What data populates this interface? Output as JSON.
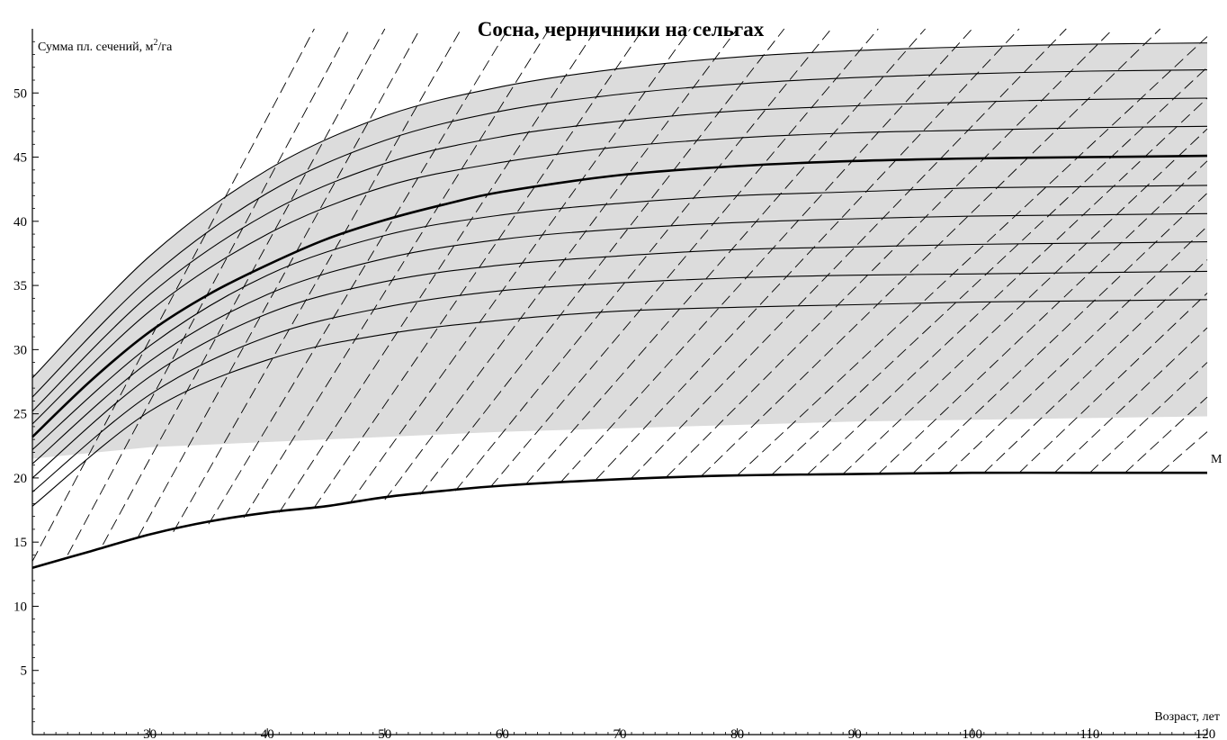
{
  "chart_data": {
    "type": "line",
    "title": "Сосна, черничники на сельгах",
    "ylabel": "Сумма пл. сечений, м²/га",
    "ylabel_main": "Сумма пл. сечений, м",
    "ylabel_sup": "2",
    "ylabel_tail": "/га",
    "xlabel": "Возраст, лет",
    "xlim": [
      20,
      120
    ],
    "ylim": [
      0,
      55
    ],
    "x_ticks": [
      30,
      40,
      50,
      60,
      70,
      80,
      90,
      100,
      110,
      120
    ],
    "y_ticks": [
      5,
      10,
      15,
      20,
      25,
      30,
      35,
      40,
      45,
      50
    ],
    "grid": false,
    "shaded_region_color": "#dcdcdc",
    "line_color": "#000000",
    "annotation_m": "М",
    "series": [
      {
        "style": "thin",
        "x": [
          20,
          30,
          40,
          50,
          60,
          70,
          80,
          90,
          100,
          110,
          120
        ],
        "y": [
          17.8,
          25.2,
          29.2,
          31.2,
          32.3,
          33.0,
          33.3,
          33.5,
          33.7,
          33.8,
          33.9
        ]
      },
      {
        "style": "thin",
        "x": [
          20,
          30,
          40,
          50,
          60,
          70,
          80,
          90,
          100,
          110,
          120
        ],
        "y": [
          18.9,
          26.5,
          31.0,
          33.3,
          34.6,
          35.2,
          35.6,
          35.8,
          35.9,
          36.0,
          36.1
        ]
      },
      {
        "style": "thin",
        "x": [
          20,
          30,
          40,
          50,
          60,
          70,
          80,
          90,
          100,
          110,
          120
        ],
        "y": [
          20.0,
          27.9,
          32.8,
          35.3,
          36.6,
          37.3,
          37.8,
          38.0,
          38.2,
          38.3,
          38.4
        ]
      },
      {
        "style": "thin",
        "x": [
          20,
          30,
          40,
          50,
          60,
          70,
          80,
          90,
          100,
          110,
          120
        ],
        "y": [
          21.1,
          29.1,
          34.3,
          37.1,
          38.6,
          39.4,
          39.9,
          40.2,
          40.4,
          40.5,
          40.6
        ]
      },
      {
        "style": "thin",
        "x": [
          20,
          30,
          40,
          50,
          60,
          70,
          80,
          90,
          100,
          110,
          120
        ],
        "y": [
          22.2,
          30.3,
          35.8,
          38.9,
          40.5,
          41.4,
          42.0,
          42.3,
          42.6,
          42.7,
          42.8
        ]
      },
      {
        "style": "thick",
        "x": [
          20,
          25,
          30,
          35,
          40,
          45,
          50,
          55,
          60,
          70,
          80,
          90,
          100,
          110,
          120
        ],
        "y": [
          23.2,
          27.6,
          31.4,
          34.3,
          36.6,
          38.6,
          40.1,
          41.3,
          42.3,
          43.6,
          44.3,
          44.7,
          44.9,
          45.0,
          45.1
        ]
      },
      {
        "style": "thin",
        "x": [
          20,
          30,
          40,
          50,
          60,
          70,
          80,
          90,
          100,
          110,
          120
        ],
        "y": [
          24.2,
          33.0,
          39.0,
          42.7,
          44.6,
          45.8,
          46.5,
          46.9,
          47.1,
          47.3,
          47.4
        ]
      },
      {
        "style": "thin",
        "x": [
          20,
          30,
          40,
          50,
          60,
          70,
          80,
          90,
          100,
          110,
          120
        ],
        "y": [
          25.2,
          34.3,
          40.6,
          44.5,
          46.6,
          47.8,
          48.6,
          49.0,
          49.3,
          49.5,
          49.6
        ]
      },
      {
        "style": "thin",
        "x": [
          20,
          30,
          40,
          50,
          60,
          70,
          80,
          90,
          100,
          110,
          120
        ],
        "y": [
          26.3,
          35.6,
          42.2,
          46.3,
          48.6,
          49.9,
          50.7,
          51.2,
          51.5,
          51.7,
          51.8
        ]
      },
      {
        "style": "thin",
        "x": [
          20,
          30,
          40,
          50,
          60,
          70,
          80,
          90,
          100,
          110,
          120
        ],
        "y": [
          27.8,
          37.3,
          44.0,
          48.2,
          50.5,
          51.9,
          52.8,
          53.3,
          53.6,
          53.8,
          53.9
        ]
      },
      {
        "style": "thick",
        "x": [
          20,
          25,
          30,
          35,
          40,
          45,
          50,
          55,
          60,
          70,
          80,
          90,
          100,
          110,
          120
        ],
        "y": [
          13.0,
          14.3,
          15.6,
          16.6,
          17.3,
          17.8,
          18.5,
          19.0,
          19.4,
          19.9,
          20.2,
          20.3,
          20.4,
          20.4,
          20.4
        ]
      }
    ],
    "dashed_lines": [
      {
        "x": [
          20.0,
          44.0
        ],
        "y": [
          13.5,
          55.0
        ]
      },
      {
        "x": [
          23.0,
          47.0
        ],
        "y": [
          14.0,
          55.0
        ]
      },
      {
        "x": [
          26.0,
          50.0
        ],
        "y": [
          14.8,
          55.0
        ]
      },
      {
        "x": [
          29.0,
          53.0
        ],
        "y": [
          15.4,
          55.0
        ]
      },
      {
        "x": [
          32.0,
          56.5
        ],
        "y": [
          15.8,
          55.0
        ]
      },
      {
        "x": [
          35.0,
          60.5
        ],
        "y": [
          16.4,
          55.0
        ]
      },
      {
        "x": [
          38.0,
          64.0
        ],
        "y": [
          16.9,
          55.0
        ]
      },
      {
        "x": [
          41.0,
          68.0
        ],
        "y": [
          17.3,
          55.0
        ]
      },
      {
        "x": [
          44.0,
          72.0
        ],
        "y": [
          17.7,
          55.0
        ]
      },
      {
        "x": [
          47.0,
          76.0
        ],
        "y": [
          18.0,
          55.0
        ]
      },
      {
        "x": [
          50.0,
          80.0
        ],
        "y": [
          18.3,
          55.0
        ]
      },
      {
        "x": [
          53.0,
          84.0
        ],
        "y": [
          18.7,
          55.0
        ]
      },
      {
        "x": [
          56.0,
          88.0
        ],
        "y": [
          19.0,
          55.0
        ]
      },
      {
        "x": [
          59.0,
          92.0
        ],
        "y": [
          19.3,
          55.0
        ]
      },
      {
        "x": [
          62.0,
          96.0
        ],
        "y": [
          19.5,
          55.0
        ]
      },
      {
        "x": [
          65.0,
          100.0
        ],
        "y": [
          19.7,
          55.0
        ]
      },
      {
        "x": [
          68.0,
          104.0
        ],
        "y": [
          19.9,
          55.0
        ]
      },
      {
        "x": [
          71.0,
          108.0
        ],
        "y": [
          20.0,
          55.0
        ]
      },
      {
        "x": [
          74.0,
          112.0
        ],
        "y": [
          20.1,
          55.0
        ]
      },
      {
        "x": [
          77.0,
          116.0
        ],
        "y": [
          20.2,
          55.0
        ]
      },
      {
        "x": [
          80.0,
          120.0
        ],
        "y": [
          20.2,
          54.4
        ]
      },
      {
        "x": [
          83.0,
          120.0
        ],
        "y": [
          20.3,
          52.0
        ]
      },
      {
        "x": [
          86.0,
          120.0
        ],
        "y": [
          20.3,
          49.6
        ]
      },
      {
        "x": [
          89.0,
          120.0
        ],
        "y": [
          20.3,
          47.2
        ]
      },
      {
        "x": [
          92.0,
          120.0
        ],
        "y": [
          20.3,
          44.7
        ]
      },
      {
        "x": [
          95.0,
          120.0
        ],
        "y": [
          20.4,
          42.2
        ]
      },
      {
        "x": [
          98.0,
          120.0
        ],
        "y": [
          20.4,
          39.6
        ]
      },
      {
        "x": [
          101.0,
          120.0
        ],
        "y": [
          20.4,
          37.0
        ]
      },
      {
        "x": [
          104.0,
          120.0
        ],
        "y": [
          20.4,
          34.4
        ]
      },
      {
        "x": [
          107.0,
          120.0
        ],
        "y": [
          20.4,
          31.7
        ]
      },
      {
        "x": [
          110.0,
          120.0
        ],
        "y": [
          20.4,
          29.0
        ]
      },
      {
        "x": [
          113.0,
          120.0
        ],
        "y": [
          20.4,
          26.3
        ]
      },
      {
        "x": [
          116.0,
          120.0
        ],
        "y": [
          20.4,
          23.6
        ]
      }
    ]
  }
}
